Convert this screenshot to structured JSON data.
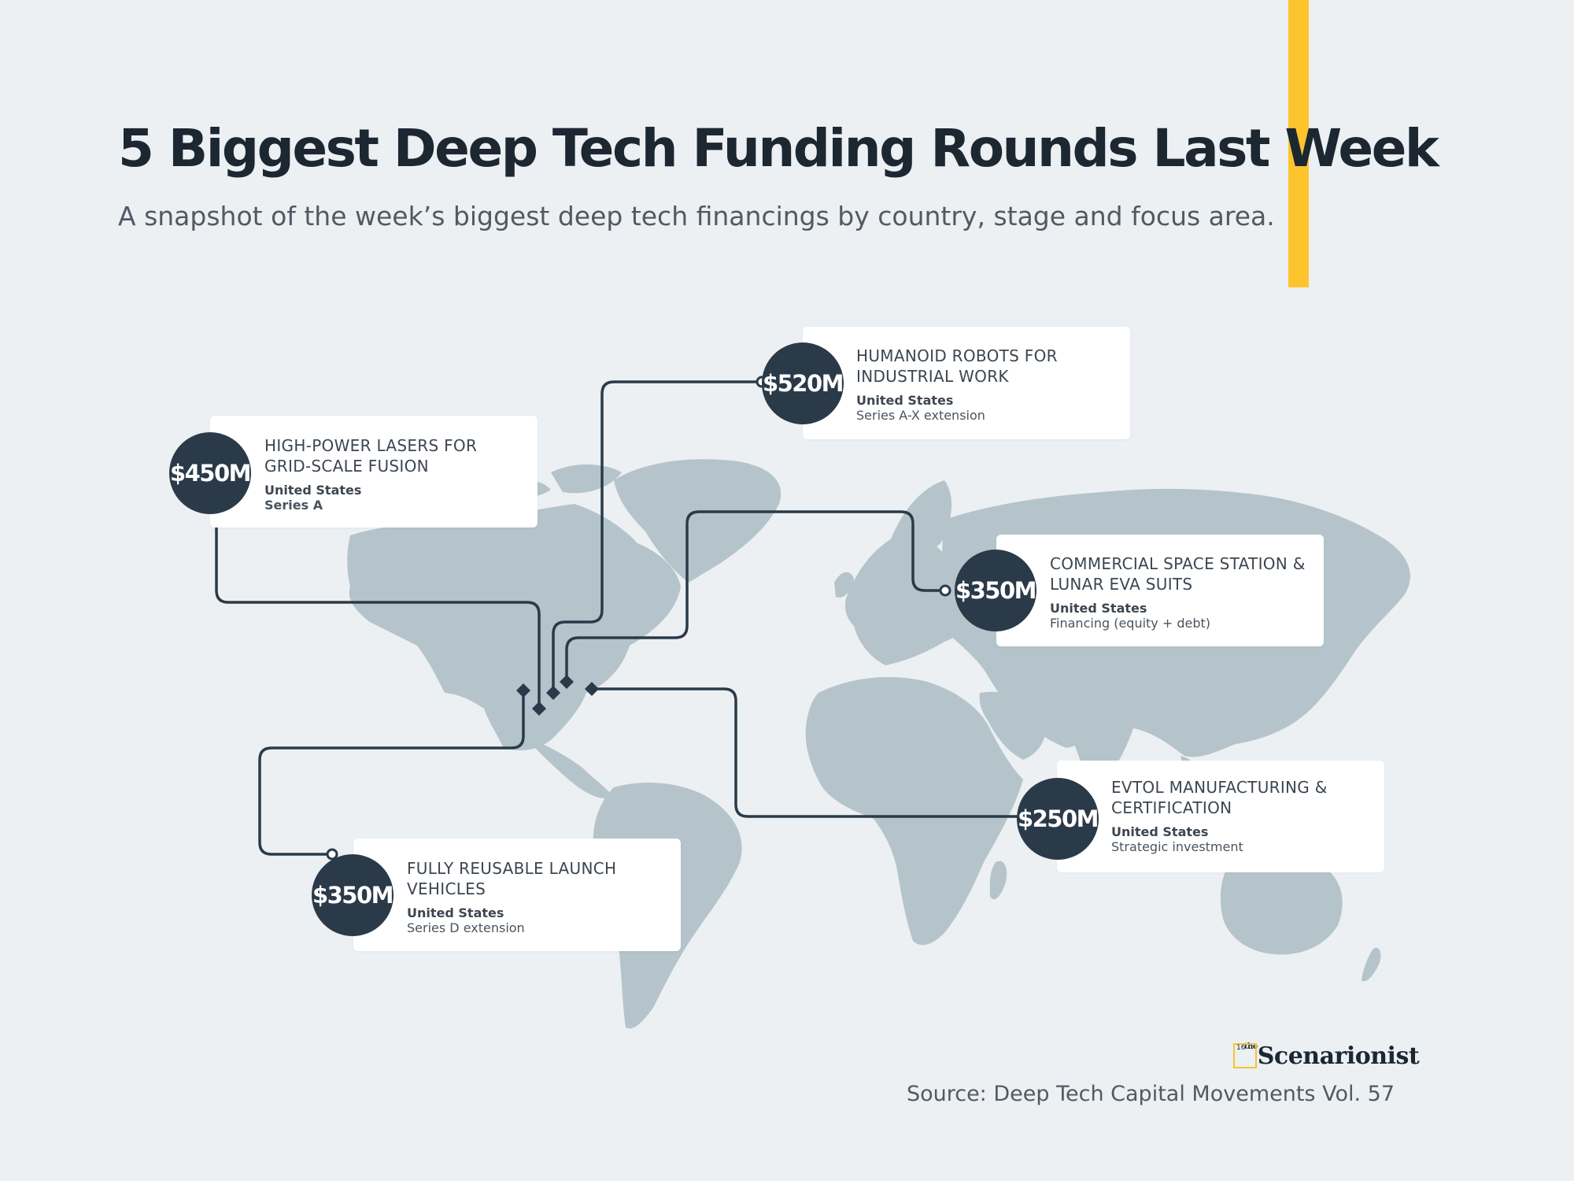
{
  "header": {
    "title": "5 Biggest Deep Tech Funding Rounds Last Week",
    "subtitle": "A snapshot of the week’s biggest deep tech financings by country, stage and focus area.",
    "accent_color": "#fec42e"
  },
  "colors": {
    "background": "#ecf0f3",
    "land": "#b5c4ca",
    "bubble": "#2a3a48",
    "connector": "#2a3a48"
  },
  "rounds": [
    {
      "amount": "$450M",
      "title": "HIGH-POWER LASERS FOR GRID-SCALE FUSION",
      "country": "United States",
      "stage": "Series A"
    },
    {
      "amount": "$520M",
      "title": "HUMANOID ROBOTS FOR INDUSTRIAL WORK",
      "country": "United States",
      "stage": "Series A-X extension"
    },
    {
      "amount": "$350M",
      "title": "COMMERCIAL SPACE STATION & LUNAR EVA SUITS",
      "country": "United States",
      "stage": "Financing (equity + debt)"
    },
    {
      "amount": "$250M",
      "title": "EVTOL MANUFACTURING & CERTIFICATION",
      "country": "United States",
      "stage": "Strategic investment"
    },
    {
      "amount": "$350M",
      "title": "FULLY REUSABLE LAUNCH VEHICLES",
      "country": "United States",
      "stage": "Series D extension"
    }
  ],
  "footer": {
    "brand_small": "the",
    "brand_mark": "16",
    "brand_name": "Scenarionist",
    "source": "Source: Deep Tech Capital Movements Vol. 57"
  }
}
